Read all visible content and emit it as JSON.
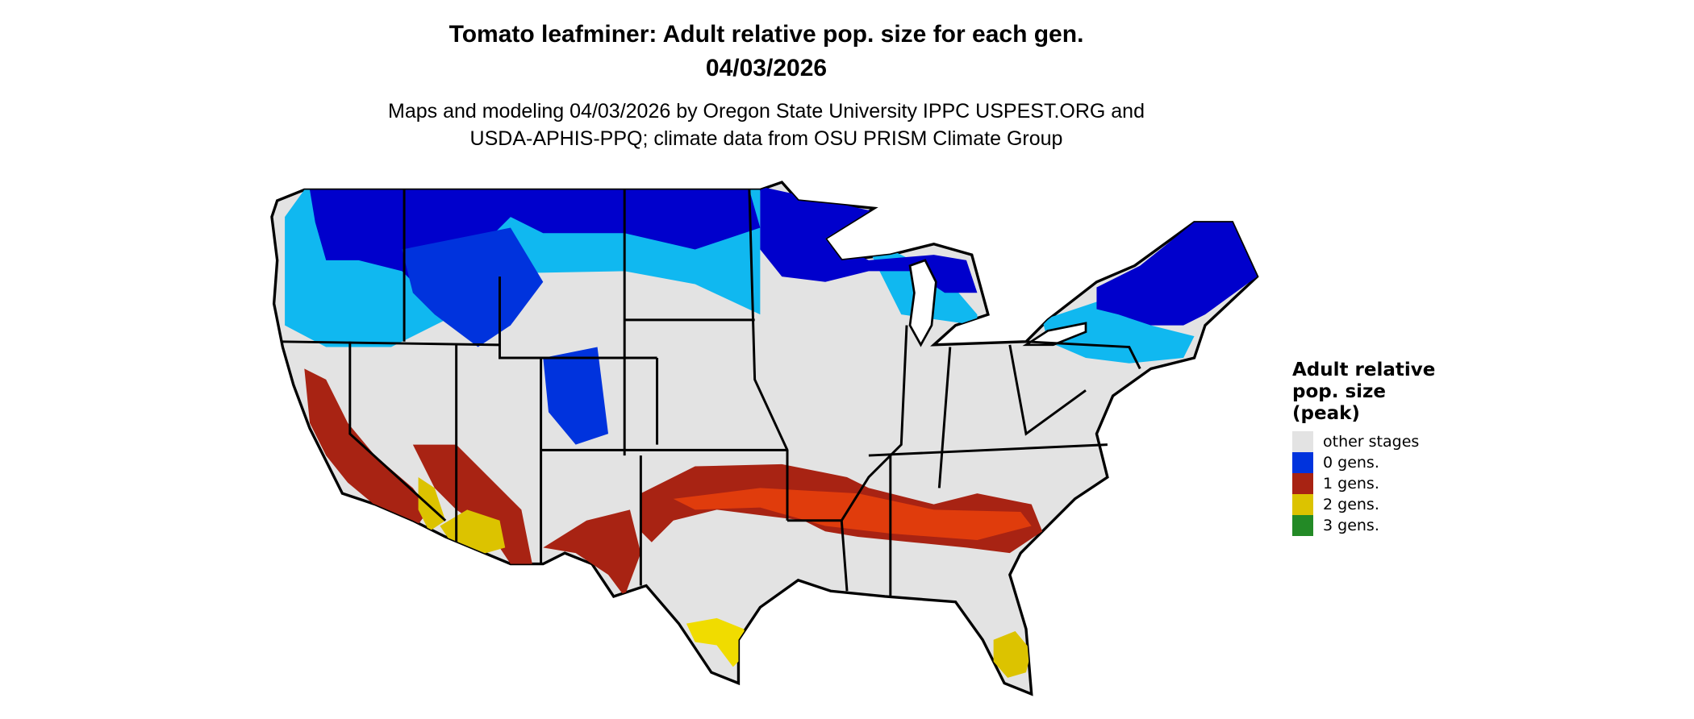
{
  "title": "Tomato leafminer: Adult relative pop. size for each gen.",
  "date": "04/03/2026",
  "subtitle_line1": "Maps and modeling 04/03/2026 by Oregon State University IPPC USPEST.ORG and",
  "subtitle_line2": "USDA-APHIS-PPQ; climate data from OSU PRISM Climate Group",
  "legend": {
    "title_lines": [
      "Adult relative",
      "pop. size",
      "(peak)"
    ],
    "items": [
      {
        "label": "other stages",
        "color": "#e3e3e3"
      },
      {
        "label": "0 gens.",
        "color": "#0033dd"
      },
      {
        "label": "1 gens.",
        "color": "#a82313"
      },
      {
        "label": "2 gens.",
        "color": "#dcc300"
      },
      {
        "label": "3 gens.",
        "color": "#238a26"
      }
    ]
  },
  "map": {
    "region": "contiguous United States",
    "colors": {
      "background_land": "#e3e3e3",
      "dark_blue": "#0000cc",
      "blue": "#0033dd",
      "light_blue": "#10b8f0",
      "red": "#a82313",
      "orange_red": "#e03c0c",
      "yellow": "#dcc300",
      "bright_yellow": "#f5e600",
      "border": "#000000"
    }
  }
}
